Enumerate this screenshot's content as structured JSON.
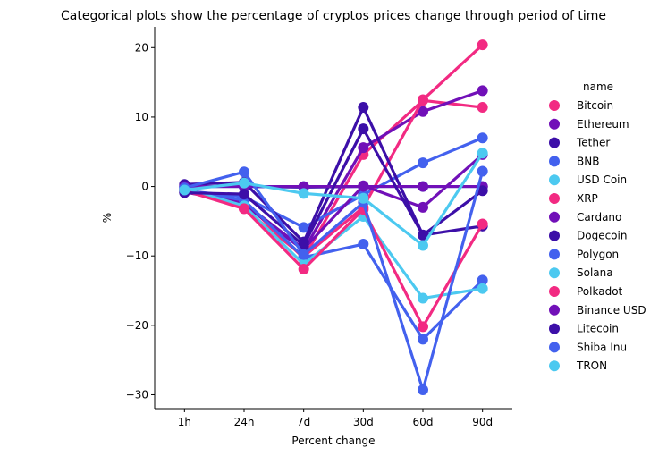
{
  "chart_data": {
    "type": "line",
    "title": "Categorical plots show the percentage of cryptos prices change through period of time",
    "xlabel": "Percent change",
    "ylabel": "%",
    "categories": [
      "1h",
      "24h",
      "7d",
      "30d",
      "60d",
      "90d"
    ],
    "ylim": [
      -32,
      23
    ],
    "yticks": [
      20,
      10,
      0,
      -10,
      -20,
      -30
    ],
    "ytick_labels": [
      "20",
      "10",
      "0",
      "−10",
      "−20",
      "−30"
    ],
    "grid": false,
    "legend": {
      "title": "name",
      "placement": "right"
    },
    "series": [
      {
        "name": "Bitcoin",
        "color": "#f22a82",
        "values": [
          -0.4,
          -2.2,
          -10.3,
          4.6,
          12.4,
          11.4
        ]
      },
      {
        "name": "Ethereum",
        "color": "#7110b8",
        "values": [
          -0.6,
          -2.6,
          -9.2,
          5.6,
          10.8,
          13.8
        ]
      },
      {
        "name": "Tether",
        "color": "#3c0fa8",
        "values": [
          0.0,
          0.0,
          -0.1,
          0.0,
          0.0,
          0.0
        ]
      },
      {
        "name": "BNB",
        "color": "#4361ee",
        "values": [
          -0.6,
          -1.5,
          -5.9,
          -1.2,
          3.4,
          7.0
        ]
      },
      {
        "name": "USD Coin",
        "color": "#4cc9f0",
        "values": [
          0.0,
          0.0,
          0.0,
          0.0,
          0.0,
          0.0
        ]
      },
      {
        "name": "XRP",
        "color": "#f22a82",
        "values": [
          -0.4,
          -3.2,
          -10.1,
          -3.0,
          12.5,
          20.4
        ]
      },
      {
        "name": "Cardano",
        "color": "#7110b8",
        "values": [
          -0.8,
          -2.4,
          -9.0,
          0.1,
          -3.0,
          4.6
        ]
      },
      {
        "name": "Dogecoin",
        "color": "#3c0fa8",
        "values": [
          0.3,
          0.6,
          -8.0,
          11.4,
          -7.0,
          -5.7
        ]
      },
      {
        "name": "Polygon",
        "color": "#4361ee",
        "values": [
          -0.5,
          -2.0,
          -10.2,
          -8.3,
          -22.0,
          -13.5
        ]
      },
      {
        "name": "Solana",
        "color": "#4cc9f0",
        "values": [
          -0.3,
          -2.8,
          -11.2,
          -4.3,
          -16.1,
          -14.7
        ]
      },
      {
        "name": "Polkadot",
        "color": "#f22a82",
        "values": [
          -0.6,
          -3.2,
          -11.9,
          -3.3,
          -20.2,
          -5.4
        ]
      },
      {
        "name": "Binance USD",
        "color": "#7110b8",
        "values": [
          0.0,
          0.0,
          0.0,
          0.0,
          0.0,
          0.0
        ]
      },
      {
        "name": "Litecoin",
        "color": "#3c0fa8",
        "values": [
          -0.9,
          -1.1,
          -8.5,
          8.3,
          -7.0,
          -0.6
        ]
      },
      {
        "name": "Shiba Inu",
        "color": "#4361ee",
        "values": [
          -0.2,
          2.1,
          -9.8,
          -2.3,
          -29.3,
          2.2
        ]
      },
      {
        "name": "TRON",
        "color": "#4cc9f0",
        "values": [
          -0.5,
          0.5,
          -1.0,
          -1.7,
          -8.5,
          4.8
        ]
      }
    ]
  }
}
